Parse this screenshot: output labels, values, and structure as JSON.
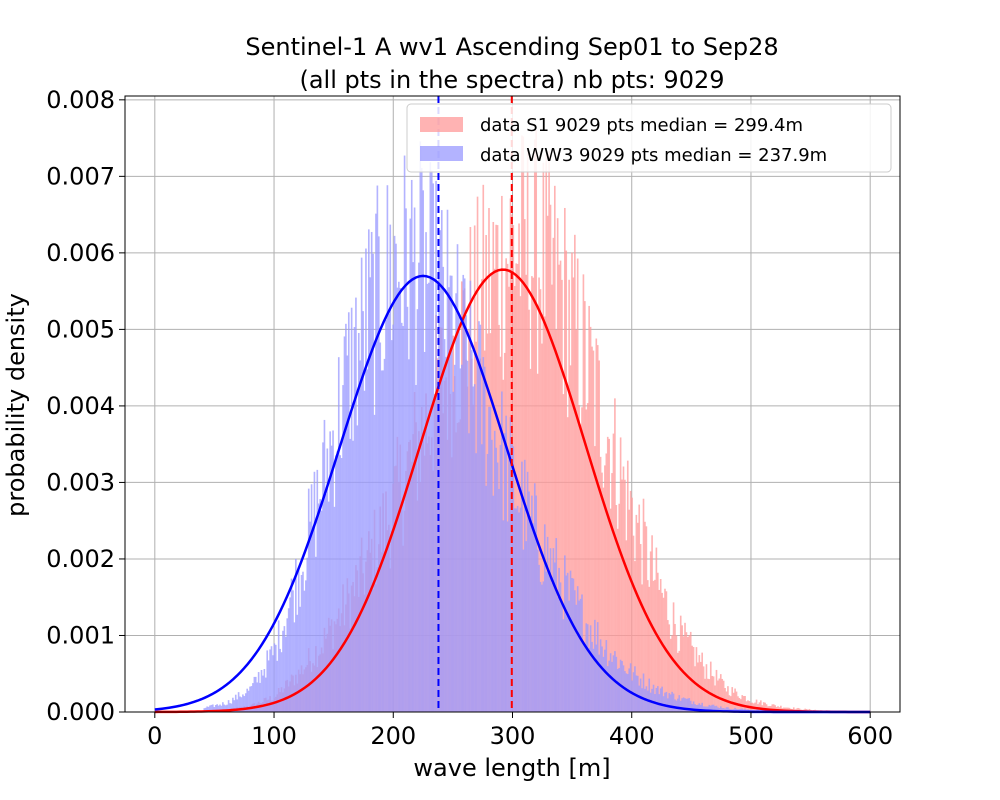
{
  "chart_data": {
    "type": "bar",
    "title_lines": [
      "Sentinel-1 A wv1 Ascending Sep01 to Sep28",
      "(all pts in the spectra) nb pts: 9029"
    ],
    "xlabel": "wave length [m]",
    "ylabel": "probability density",
    "xlim": [
      -25,
      625
    ],
    "ylim": [
      0,
      0.00805
    ],
    "x_ticks": [
      {
        "value": 0,
        "label": "0"
      },
      {
        "value": 100,
        "label": "100"
      },
      {
        "value": 200,
        "label": "200"
      },
      {
        "value": 300,
        "label": "300"
      },
      {
        "value": 400,
        "label": "400"
      },
      {
        "value": 500,
        "label": "500"
      },
      {
        "value": 600,
        "label": "600"
      }
    ],
    "y_ticks": [
      {
        "value": 0.0,
        "label": "0.000"
      },
      {
        "value": 0.001,
        "label": "0.001"
      },
      {
        "value": 0.002,
        "label": "0.002"
      },
      {
        "value": 0.003,
        "label": "0.003"
      },
      {
        "value": 0.004,
        "label": "0.004"
      },
      {
        "value": 0.005,
        "label": "0.005"
      },
      {
        "value": 0.006,
        "label": "0.006"
      },
      {
        "value": 0.007,
        "label": "0.007"
      },
      {
        "value": 0.008,
        "label": "0.008"
      }
    ],
    "grid": true,
    "legend_position": "top-right",
    "series": [
      {
        "name": "data S1 9029 pts median = 299.4m",
        "kind": "histogram",
        "color": "#ff9999",
        "fit_color": "#ff0000",
        "median": 299.4,
        "fit_mean": 292,
        "fit_sd": 69,
        "hist": [
          {
            "x": 60,
            "y": 3e-05
          },
          {
            "x": 80,
            "y": 8e-05
          },
          {
            "x": 100,
            "y": 0.0002
          },
          {
            "x": 120,
            "y": 0.0005
          },
          {
            "x": 140,
            "y": 0.0009
          },
          {
            "x": 160,
            "y": 0.0014
          },
          {
            "x": 180,
            "y": 0.002
          },
          {
            "x": 200,
            "y": 0.0027
          },
          {
            "x": 220,
            "y": 0.0035
          },
          {
            "x": 240,
            "y": 0.0043
          },
          {
            "x": 260,
            "y": 0.005
          },
          {
            "x": 280,
            "y": 0.0056
          },
          {
            "x": 300,
            "y": 0.0061
          },
          {
            "x": 320,
            "y": 0.006
          },
          {
            "x": 340,
            "y": 0.0055
          },
          {
            "x": 360,
            "y": 0.0046
          },
          {
            "x": 380,
            "y": 0.0036
          },
          {
            "x": 400,
            "y": 0.0026
          },
          {
            "x": 420,
            "y": 0.0017
          },
          {
            "x": 440,
            "y": 0.001
          },
          {
            "x": 460,
            "y": 0.0006
          },
          {
            "x": 480,
            "y": 0.0003
          },
          {
            "x": 500,
            "y": 0.00015
          },
          {
            "x": 520,
            "y": 8e-05
          },
          {
            "x": 540,
            "y": 4e-05
          },
          {
            "x": 560,
            "y": 2e-05
          },
          {
            "x": 580,
            "y": 1e-05
          }
        ]
      },
      {
        "name": "data WW3 9029 pts median = 237.9m",
        "kind": "histogram",
        "color": "#9999ff",
        "fit_color": "#0000ff",
        "median": 237.9,
        "fit_mean": 225,
        "fit_sd": 70,
        "hist": [
          {
            "x": 40,
            "y": 5e-05
          },
          {
            "x": 60,
            "y": 0.00012
          },
          {
            "x": 80,
            "y": 0.0003
          },
          {
            "x": 100,
            "y": 0.0008
          },
          {
            "x": 120,
            "y": 0.0018
          },
          {
            "x": 140,
            "y": 0.003
          },
          {
            "x": 160,
            "y": 0.0043
          },
          {
            "x": 180,
            "y": 0.0052
          },
          {
            "x": 200,
            "y": 0.0058
          },
          {
            "x": 220,
            "y": 0.0059
          },
          {
            "x": 240,
            "y": 0.0054
          },
          {
            "x": 260,
            "y": 0.0046
          },
          {
            "x": 280,
            "y": 0.0038
          },
          {
            "x": 300,
            "y": 0.003
          },
          {
            "x": 320,
            "y": 0.0023
          },
          {
            "x": 340,
            "y": 0.0017
          },
          {
            "x": 360,
            "y": 0.0012
          },
          {
            "x": 380,
            "y": 0.0008
          },
          {
            "x": 400,
            "y": 0.0005
          },
          {
            "x": 420,
            "y": 0.0003
          },
          {
            "x": 440,
            "y": 0.00018
          },
          {
            "x": 460,
            "y": 0.0001
          },
          {
            "x": 480,
            "y": 5e-05
          },
          {
            "x": 500,
            "y": 3e-05
          },
          {
            "x": 520,
            "y": 2e-05
          }
        ]
      }
    ]
  }
}
